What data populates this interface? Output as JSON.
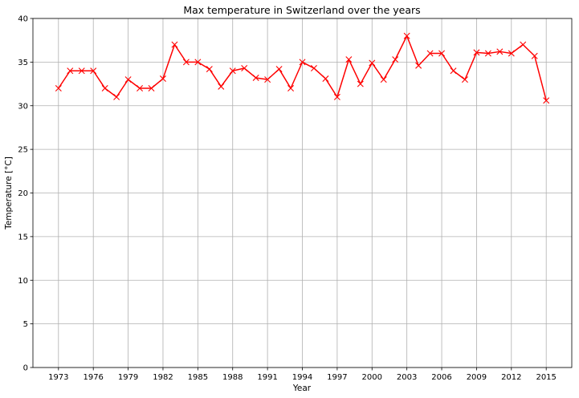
{
  "chart_data": {
    "type": "line",
    "title": "Max temperature in Switzerland over the years",
    "xlabel": "Year",
    "ylabel": "Temperature [°C]",
    "xlim": [
      1970.8,
      2017.2
    ],
    "ylim": [
      0,
      40
    ],
    "x_tick_labels": [
      "1973",
      "1976",
      "1979",
      "1982",
      "1985",
      "1988",
      "1991",
      "1994",
      "1997",
      "2000",
      "2003",
      "2006",
      "2009",
      "2012",
      "2015"
    ],
    "x_tick_values": [
      1973,
      1976,
      1979,
      1982,
      1985,
      1988,
      1991,
      1994,
      1997,
      2000,
      2003,
      2006,
      2009,
      2012,
      2015
    ],
    "y_ticks": [
      0,
      5,
      10,
      15,
      20,
      25,
      30,
      35,
      40
    ],
    "grid": true,
    "marker": "x",
    "series": [
      {
        "color": "#ff0000",
        "x": [
          1973,
          1974,
          1975,
          1976,
          1977,
          1978,
          1979,
          1980,
          1981,
          1982,
          1983,
          1984,
          1985,
          1986,
          1987,
          1988,
          1989,
          1990,
          1991,
          1992,
          1993,
          1994,
          1995,
          1996,
          1997,
          1998,
          1999,
          2000,
          2001,
          2002,
          2003,
          2004,
          2005,
          2006,
          2007,
          2008,
          2009,
          2010,
          2011,
          2012,
          2013,
          2014,
          2015
        ],
        "values": [
          32.0,
          34.0,
          34.0,
          34.0,
          32.0,
          31.0,
          33.0,
          32.0,
          32.0,
          33.1,
          37.0,
          35.0,
          35.0,
          34.2,
          32.2,
          34.0,
          34.3,
          33.2,
          33.0,
          34.2,
          32.0,
          35.0,
          34.3,
          33.1,
          31.0,
          35.3,
          32.5,
          34.9,
          33.0,
          35.3,
          38.0,
          34.6,
          36.0,
          36.0,
          34.0,
          33.0,
          36.1,
          36.0,
          36.2,
          36.0,
          37.0,
          35.7,
          30.6
        ]
      }
    ]
  }
}
